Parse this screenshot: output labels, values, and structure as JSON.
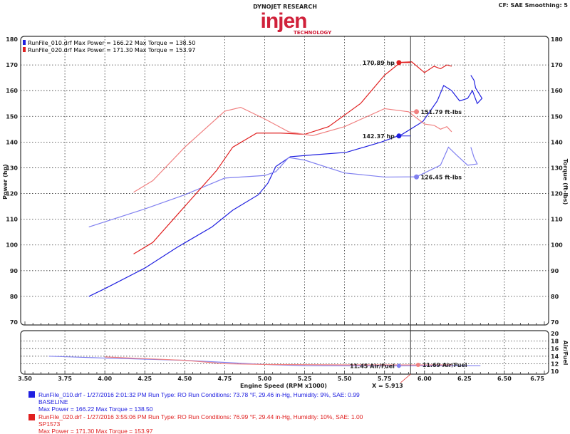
{
  "header": {
    "title": "DYNOJET RESEARCH",
    "logo_text": "injen",
    "logo_sub": "TECHNOLOGY",
    "settings": "CF: SAE  Smoothing: 5"
  },
  "legend": [
    {
      "text": "RunFile_010.drf Max Power = 166.22    Max Torque = 138.50",
      "color": "#2020e0"
    },
    {
      "text": "RunFile_020.drf Max Power = 171.30    Max Torque = 153.97",
      "color": "#e02020"
    }
  ],
  "cursor": {
    "x": 5.913,
    "label": "X = 5.913",
    "readouts": [
      "170.89 hp",
      "151.79 ft-lbs",
      "142.37 hp",
      "126.45 ft-lbs",
      "11.45 Air/Fuel",
      "11.69 Air/Fuel"
    ]
  },
  "runs": [
    {
      "line1": "RunFile_010.drf - 1/27/2016 2:01:32 PM  Run Type: RO  Run Conditions: 73.78 °F, 29.46 in-Hg,  Humidity:  9%, SAE: 0.99",
      "line2": "BASELINE",
      "line3": "Max Power = 166.22  Max Torque = 138.50",
      "color": "#2020e0"
    },
    {
      "line1": "RunFile_020.drf - 1/27/2016 3:55:06 PM  Run Type: RO  Run Conditions: 76.99 °F, 29.44 in-Hg,  Humidity:  10%, SAE: 1.00",
      "line2": "SP1573",
      "line3": "Max Power = 171.30  Max Torque = 153.97",
      "color": "#e02020"
    }
  ],
  "chart_data": [
    {
      "type": "line",
      "xlabel": "Engine Speed (RPM x1000)",
      "ylabel": "Power (hp)",
      "y2label": "Torque (ft-lbs)",
      "xlim": [
        3.5,
        6.75
      ],
      "ylim": [
        70,
        180
      ],
      "grid": true,
      "xticks": [
        "3.50",
        "3.75",
        "4.00",
        "4.25",
        "4.50",
        "4.75",
        "5.00",
        "5.25",
        "5.50",
        "5.75",
        "6.00",
        "6.25",
        "6.50",
        "6.75"
      ],
      "yticks": [
        "70",
        "80",
        "90",
        "100",
        "110",
        "120",
        "130",
        "140",
        "150",
        "160",
        "170",
        "180"
      ],
      "series": [
        {
          "name": "RunFile_010.drf Power",
          "color": "#2020e0",
          "points": [
            [
              3.9,
              80
            ],
            [
              4.0,
              83
            ],
            [
              4.25,
              91
            ],
            [
              4.45,
              99
            ],
            [
              4.67,
              107
            ],
            [
              4.8,
              113.5
            ],
            [
              4.96,
              119.5
            ],
            [
              5.02,
              124
            ],
            [
              5.07,
              130.5
            ],
            [
              5.16,
              134.3
            ],
            [
              5.3,
              135
            ],
            [
              5.51,
              136
            ],
            [
              5.73,
              140
            ],
            [
              5.86,
              143
            ],
            [
              5.99,
              148
            ],
            [
              6.08,
              156
            ],
            [
              6.12,
              162
            ],
            [
              6.17,
              160
            ],
            [
              6.22,
              156
            ],
            [
              6.27,
              157
            ],
            [
              6.3,
              160
            ],
            [
              6.33,
              155
            ],
            [
              6.36,
              157
            ],
            [
              6.32,
              161
            ],
            [
              6.31,
              164
            ],
            [
              6.29,
              166
            ]
          ]
        },
        {
          "name": "RunFile_010.drf Torque",
          "color": "#8080f0",
          "points": [
            [
              3.9,
              107
            ],
            [
              4.25,
              114
            ],
            [
              4.5,
              119.5
            ],
            [
              4.75,
              126
            ],
            [
              5.0,
              127
            ],
            [
              5.07,
              128.5
            ],
            [
              5.15,
              134
            ],
            [
              5.25,
              133
            ],
            [
              5.5,
              128
            ],
            [
              5.75,
              126.4
            ],
            [
              5.95,
              126.5
            ],
            [
              6.1,
              131
            ],
            [
              6.15,
              138
            ],
            [
              6.2,
              135
            ],
            [
              6.27,
              131
            ],
            [
              6.33,
              131.5
            ],
            [
              6.31,
              134
            ],
            [
              6.29,
              138
            ]
          ]
        },
        {
          "name": "RunFile_020.drf Power",
          "color": "#e02020",
          "points": [
            [
              4.18,
              96.5
            ],
            [
              4.3,
              101
            ],
            [
              4.5,
              115
            ],
            [
              4.7,
              129
            ],
            [
              4.8,
              138
            ],
            [
              4.95,
              143.5
            ],
            [
              5.1,
              143.5
            ],
            [
              5.25,
              143
            ],
            [
              5.4,
              146
            ],
            [
              5.6,
              155
            ],
            [
              5.75,
              166
            ],
            [
              5.85,
              171
            ],
            [
              5.92,
              171.2
            ],
            [
              6.0,
              167
            ],
            [
              6.06,
              169.5
            ],
            [
              6.1,
              168.5
            ],
            [
              6.14,
              170
            ],
            [
              6.17,
              169.5
            ]
          ]
        },
        {
          "name": "RunFile_020.drf Torque",
          "color": "#f08080",
          "points": [
            [
              4.18,
              120.5
            ],
            [
              4.3,
              125
            ],
            [
              4.5,
              138
            ],
            [
              4.75,
              152
            ],
            [
              4.85,
              153.5
            ],
            [
              5.0,
              149
            ],
            [
              5.15,
              144
            ],
            [
              5.3,
              142.5
            ],
            [
              5.5,
              146
            ],
            [
              5.75,
              153
            ],
            [
              5.9,
              151.8
            ],
            [
              6.0,
              147
            ],
            [
              6.06,
              146.5
            ],
            [
              6.1,
              145
            ],
            [
              6.14,
              146
            ],
            [
              6.17,
              144
            ]
          ]
        }
      ]
    },
    {
      "type": "line",
      "ylabel": "Air/Fuel",
      "xlim": [
        3.5,
        6.75
      ],
      "ylim": [
        10,
        20
      ],
      "grid": true,
      "yticks": [
        "10",
        "12",
        "14",
        "16",
        "18",
        "20"
      ],
      "series": [
        {
          "name": "RunFile_010.drf Air/Fuel",
          "color": "#8080f0",
          "points": [
            [
              3.65,
              14
            ],
            [
              4.0,
              13.5
            ],
            [
              4.5,
              12.9
            ],
            [
              5.0,
              11.8
            ],
            [
              5.25,
              11.5
            ],
            [
              5.84,
              11.45
            ],
            [
              6.0,
              11.5
            ],
            [
              6.35,
              11.5
            ]
          ]
        },
        {
          "name": "RunFile_020.drf Air/Fuel",
          "color": "#f08080",
          "points": [
            [
              4.0,
              13.8
            ],
            [
              4.5,
              12.9
            ],
            [
              4.75,
              12.0
            ],
            [
              5.0,
              11.8
            ],
            [
              5.5,
              11.7
            ],
            [
              5.96,
              11.69
            ],
            [
              6.17,
              11.7
            ]
          ]
        }
      ]
    }
  ]
}
